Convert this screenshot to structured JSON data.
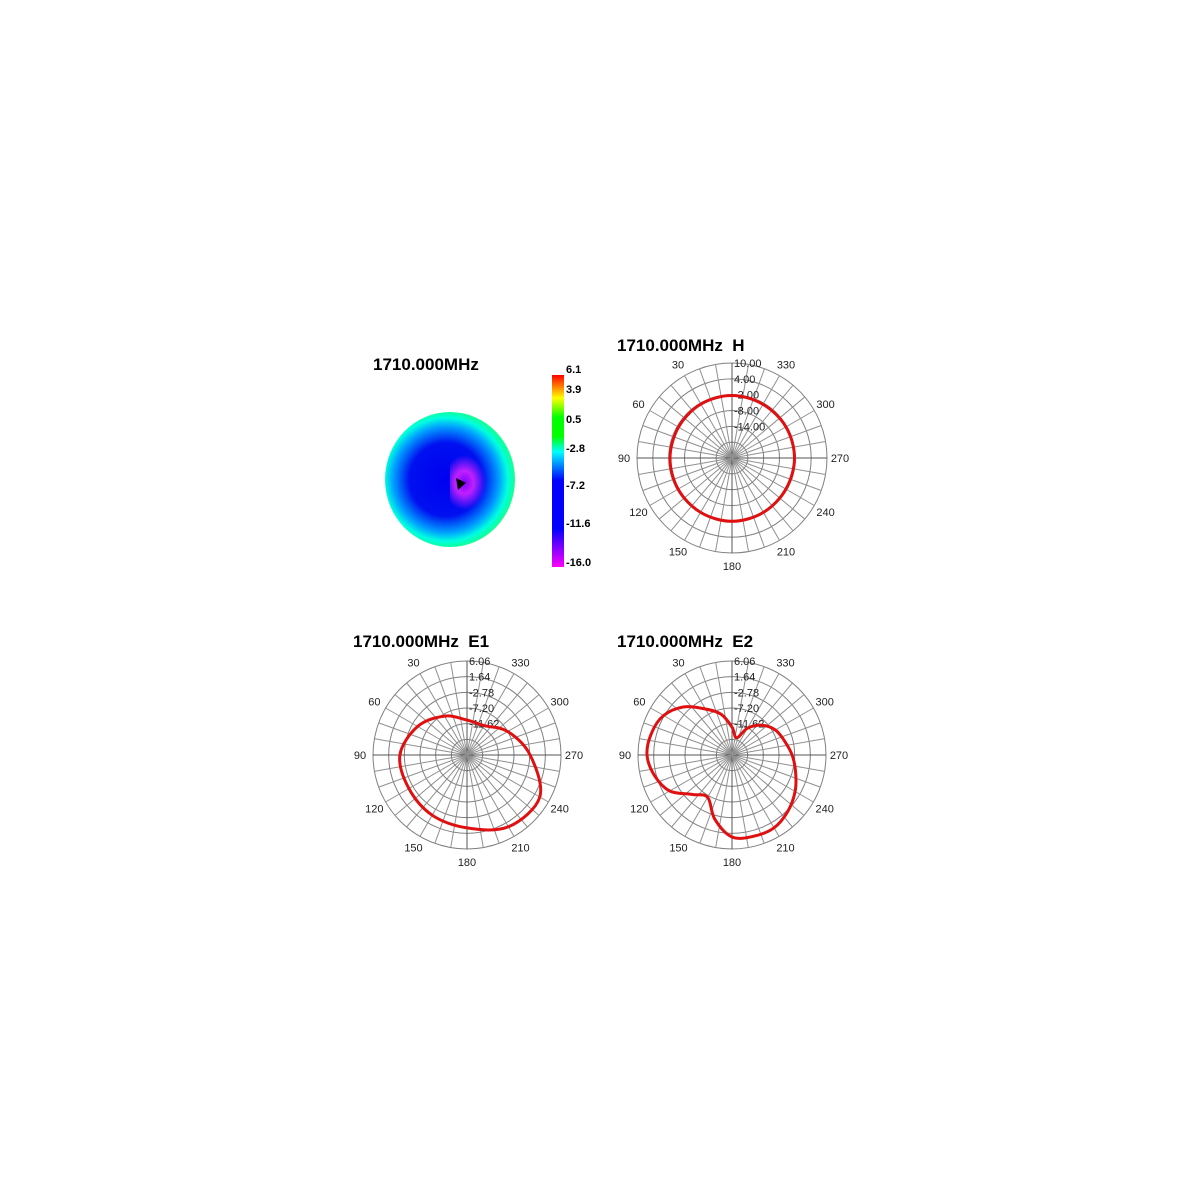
{
  "chart_data": [
    {
      "type": "heatmap",
      "title": "1710.000MHz",
      "colorbar": {
        "ticks": [
          "6.1",
          "3.9",
          "0.5",
          "-2.8",
          "-7.2",
          "-11.6",
          "-16.0"
        ],
        "range": [
          -16.0,
          6.1
        ],
        "colors": [
          "#ff00ff",
          "#0000ff",
          "#0000ff",
          "#00ffff",
          "#00ff00",
          "#00ff00",
          "#ffff00",
          "#ff0000"
        ]
      }
    },
    {
      "type": "polar",
      "title": "1710.000MHz  H",
      "radial_ticks": [
        "10.00",
        "4.00",
        "-2.00",
        "-8.00",
        "-14.00"
      ],
      "r_range": [
        -26,
        10
      ],
      "angle_ticks": [
        "30",
        "60",
        "90",
        "120",
        "150",
        "180",
        "210",
        "240",
        "270",
        "300",
        "330"
      ],
      "angles": [
        0,
        30,
        60,
        90,
        120,
        150,
        180,
        210,
        240,
        270,
        300,
        330
      ],
      "values": [
        -2.3,
        -2.4,
        -2.6,
        -2.5,
        -2.4,
        -2.2,
        -2.0,
        -2.2,
        -2.4,
        -2.3,
        -2.4,
        -2.5
      ],
      "line_color": "#e01010"
    },
    {
      "type": "polar",
      "title": "1710.000MHz  E1",
      "radial_ticks": [
        "6.06",
        "1.64",
        "-2.78",
        "-7.20",
        "-11.62"
      ],
      "r_range": [
        -24.88,
        6.06
      ],
      "angle_ticks": [
        "30",
        "60",
        "90",
        "120",
        "150",
        "180",
        "210",
        "240",
        "270",
        "300",
        "330"
      ],
      "angles": [
        0,
        30,
        60,
        90,
        120,
        150,
        180,
        210,
        240,
        270,
        300,
        330
      ],
      "values": [
        -13.4,
        -10.1,
        -6.1,
        -2.8,
        -2.8,
        -2.0,
        -0.9,
        2.4,
        2.8,
        -4.1,
        -9.4,
        -13.7
      ],
      "line_color": "#e01010"
    },
    {
      "type": "polar",
      "title": "1710.000MHz  E2",
      "radial_ticks": [
        "6.06",
        "1.64",
        "-2.78",
        "-7.20",
        "-11.62"
      ],
      "r_range": [
        -24.88,
        6.06
      ],
      "angle_ticks": [
        "30",
        "60",
        "90",
        "120",
        "150",
        "180",
        "210",
        "240",
        "270",
        "300",
        "330"
      ],
      "angles": [
        0,
        15,
        30,
        45,
        60,
        75,
        90,
        105,
        120,
        135,
        150,
        165,
        180,
        195,
        210,
        225,
        240,
        255,
        270,
        285,
        300,
        315,
        330,
        345
      ],
      "values": [
        -15.7,
        -11.0,
        -7.4,
        -2.5,
        1.1,
        2.6,
        3.1,
        1.5,
        -1.2,
        -6.5,
        -8.8,
        -3.0,
        2.1,
        2.8,
        2.8,
        1.2,
        -0.9,
        -3.2,
        -5.1,
        -7.0,
        -8.4,
        -11.0,
        -14.7,
        -19.0
      ],
      "line_color": "#e01010"
    }
  ]
}
